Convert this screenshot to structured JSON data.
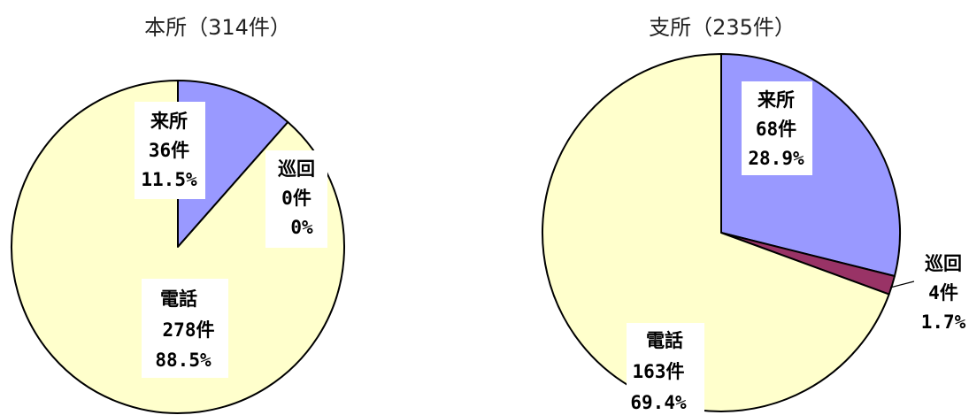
{
  "chart_data": [
    {
      "type": "pie",
      "title": "本所（314件）",
      "slices": [
        {
          "name": "来所",
          "count_label": "36件",
          "pct_label": "11.5%",
          "value": 11.5,
          "color": "#9999ff"
        },
        {
          "name": "巡回",
          "count_label": "0件",
          "pct_label": "0%",
          "value": 0,
          "color": "#993366"
        },
        {
          "name": "電話",
          "count_label": "278件",
          "pct_label": "88.5%",
          "value": 88.5,
          "color": "#ffffcc"
        }
      ]
    },
    {
      "type": "pie",
      "title": "支所（235件）",
      "slices": [
        {
          "name": "来所",
          "count_label": "68件",
          "pct_label": "28.9%",
          "value": 28.9,
          "color": "#9999ff"
        },
        {
          "name": "巡回",
          "count_label": "4件",
          "pct_label": "1.7%",
          "value": 1.7,
          "color": "#993366"
        },
        {
          "name": "電話",
          "count_label": "163件",
          "pct_label": "69.4%",
          "value": 69.4,
          "color": "#ffffcc"
        }
      ]
    }
  ]
}
